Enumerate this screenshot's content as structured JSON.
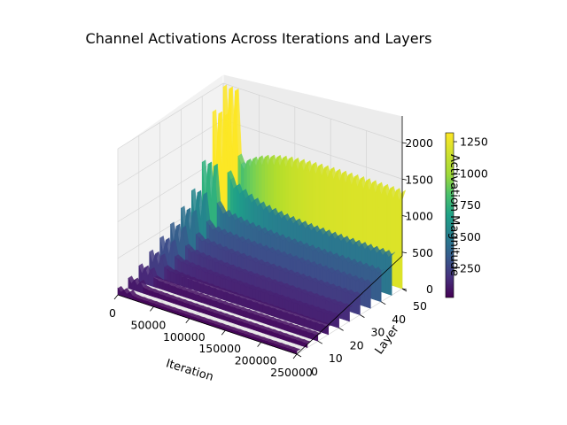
{
  "chart_data": {
    "type": "surface3d",
    "title": "Channel Activations Across Iterations and Layers",
    "xlabel": "Iteration",
    "ylabel": "Layer",
    "zlabel": "Activation Magnitude",
    "x_ticks": [
      "0",
      "50000",
      "100000",
      "150000",
      "200000",
      "250000"
    ],
    "y_ticks": [
      "0",
      "10",
      "20",
      "30",
      "40",
      "50"
    ],
    "z_ticks": [
      "0",
      "500",
      "1000",
      "1500",
      "2000"
    ],
    "colorbar_ticks": [
      "250",
      "500",
      "750",
      "1000",
      "1250"
    ],
    "xlim": [
      0,
      250000
    ],
    "ylim": [
      0,
      50
    ],
    "zlim": [
      0,
      2000
    ],
    "colorbar_range": [
      20,
      1320
    ],
    "colormap": "viridis",
    "grid": true,
    "layers": [
      {
        "layer": 0,
        "peak": 90,
        "plateau": 40
      },
      {
        "layer": 5,
        "peak": 140,
        "plateau": 55
      },
      {
        "layer": 10,
        "peak": 220,
        "plateau": 80
      },
      {
        "layer": 15,
        "peak": 320,
        "plateau": 110
      },
      {
        "layer": 20,
        "peak": 420,
        "plateau": 150
      },
      {
        "layer": 25,
        "peak": 520,
        "plateau": 190
      },
      {
        "layer": 30,
        "peak": 650,
        "plateau": 260
      },
      {
        "layer": 35,
        "peak": 800,
        "plateau": 340
      },
      {
        "layer": 40,
        "peak": 1100,
        "plateau": 420
      },
      {
        "layer": 45,
        "peak": 1700,
        "plateau": 560
      },
      {
        "layer": 50,
        "peak": 1950,
        "plateau": 1320
      }
    ]
  }
}
